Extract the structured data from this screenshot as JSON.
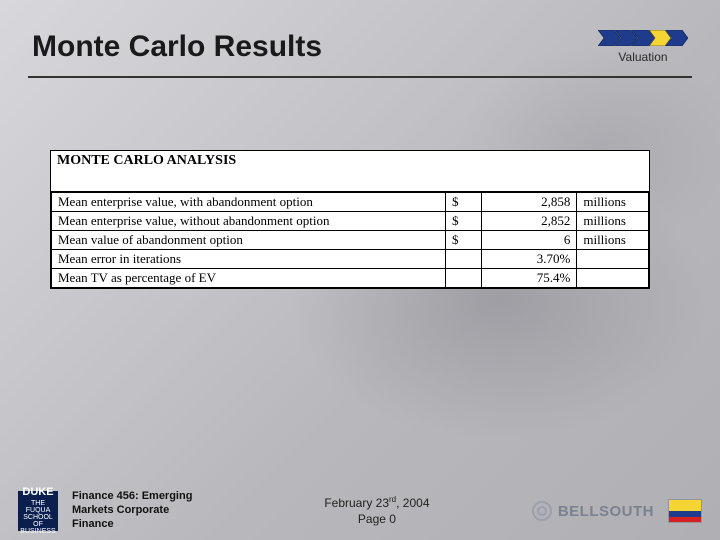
{
  "header": {
    "title": "Monte Carlo Results",
    "tag_label": "Valuation",
    "chevrons": {
      "colors": [
        "#1f3b8c",
        "#1f3b8c",
        "#1f3b8c",
        "#f4d533",
        "#1f3b8c"
      ],
      "stroke": "#0c1f4a"
    }
  },
  "table": {
    "title": "MONTE CARLO ANALYSIS",
    "title_fontfamily": "Times New Roman",
    "title_fontsize": 14,
    "cell_fontsize": 13,
    "border_color": "#000000",
    "background": "#ffffff",
    "rows": [
      {
        "desc": "Mean enterprise value, with abandonment option",
        "currency": "$",
        "value": "2,858",
        "unit": "millions"
      },
      {
        "desc": "Mean enterprise value, without abandonment option",
        "currency": "$",
        "value": "2,852",
        "unit": "millions"
      },
      {
        "desc": "Mean value of abandonment option",
        "currency": "$",
        "value": "6",
        "unit": "millions"
      },
      {
        "desc": "Mean error in iterations",
        "currency": "",
        "value": "3.70%",
        "unit": ""
      },
      {
        "desc": "Mean TV as percentage of EV",
        "currency": "",
        "value": "75.4%",
        "unit": ""
      }
    ]
  },
  "footer": {
    "duke": {
      "brand": "DUKE",
      "sub1": "THE FUQUA",
      "sub2": "SCHOOL",
      "sub3": "OF BUSINESS"
    },
    "course_line1": "Finance 456: Emerging",
    "course_line2": "Markets Corporate",
    "course_line3": "Finance",
    "date_prefix": "February 23",
    "date_suffix": "rd",
    "date_year": ", 2004",
    "page_label": "Page 0",
    "sponsor": "BELLSOUTH",
    "flag_colors": {
      "yellow": "#f4d533",
      "blue": "#1f3b8c",
      "red": "#d42020"
    }
  },
  "colors": {
    "title_color": "#1a1a1a",
    "hr_color": "#333333",
    "bg_from": "#d8d8dc",
    "bg_to": "#b0b0b4"
  }
}
